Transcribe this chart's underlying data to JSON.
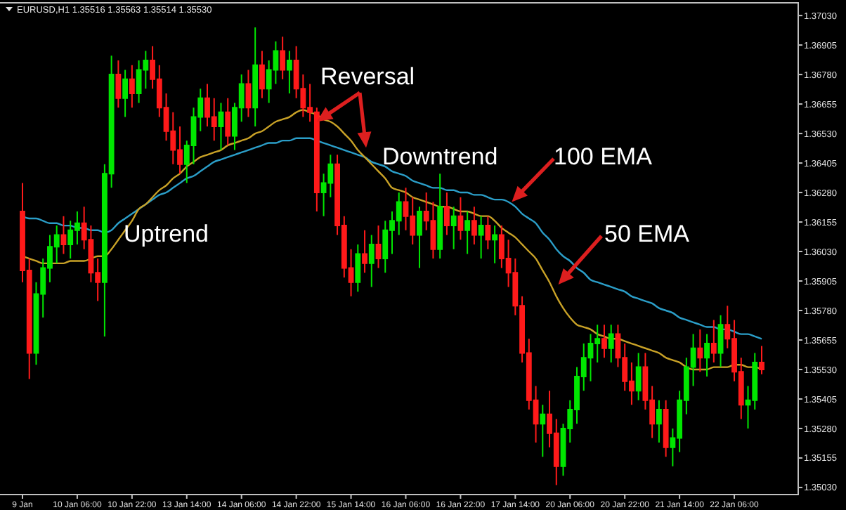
{
  "chart_data": {
    "type": "candlestick",
    "title": "EURUSD,H1 1.35516 1.35563 1.35514 1.35530",
    "categories": [
      "9 Jan",
      null,
      null,
      null,
      null,
      null,
      null,
      null,
      "10 Jan 06:00",
      null,
      null,
      null,
      null,
      null,
      null,
      null,
      "10 Jan 22:00",
      null,
      null,
      null,
      null,
      null,
      null,
      null,
      "13 Jan 14:00",
      null,
      null,
      null,
      null,
      null,
      null,
      null,
      "14 Jan 06:00",
      null,
      null,
      null,
      null,
      null,
      null,
      null,
      "14 Jan 22:00",
      null,
      null,
      null,
      null,
      null,
      null,
      null,
      "15 Jan 14:00",
      null,
      null,
      null,
      null,
      null,
      null,
      null,
      "16 Jan 06:00",
      null,
      null,
      null,
      null,
      null,
      null,
      null,
      "16 Jan 22:00",
      null,
      null,
      null,
      null,
      null,
      null,
      null,
      "17 Jan 14:00",
      null,
      null,
      null,
      null,
      null,
      null,
      null,
      "20 Jan 06:00",
      null,
      null,
      null,
      null,
      null,
      null,
      null,
      "20 Jan 22:00",
      null,
      null,
      null,
      null,
      null,
      null,
      null,
      "21 Jan 14:00",
      null,
      null,
      null,
      null,
      null,
      null,
      null,
      "22 Jan 06:00",
      null,
      null,
      null,
      null
    ],
    "ohlc": [
      [
        1.362,
        1.3632,
        1.359,
        1.3595
      ],
      [
        1.3595,
        1.36,
        1.3549,
        1.356
      ],
      [
        1.356,
        1.359,
        1.3555,
        1.3585
      ],
      [
        1.3585,
        1.36,
        1.3575,
        1.3596
      ],
      [
        1.3596,
        1.361,
        1.359,
        1.3605
      ],
      [
        1.3605,
        1.3614,
        1.3598,
        1.361
      ],
      [
        1.361,
        1.3618,
        1.3602,
        1.3606
      ],
      [
        1.3606,
        1.3616,
        1.36,
        1.3612
      ],
      [
        1.3612,
        1.362,
        1.3606,
        1.3615
      ],
      [
        1.3615,
        1.3622,
        1.3604,
        1.3608
      ],
      [
        1.3608,
        1.3614,
        1.359,
        1.3594
      ],
      [
        1.3594,
        1.36,
        1.3582,
        1.359
      ],
      [
        1.359,
        1.364,
        1.3567,
        1.3636
      ],
      [
        1.3636,
        1.3686,
        1.363,
        1.3678
      ],
      [
        1.3678,
        1.3684,
        1.3664,
        1.3668
      ],
      [
        1.3668,
        1.368,
        1.366,
        1.3676
      ],
      [
        1.3676,
        1.3682,
        1.3664,
        1.367
      ],
      [
        1.367,
        1.3684,
        1.3666,
        1.368
      ],
      [
        1.368,
        1.3688,
        1.3672,
        1.3684
      ],
      [
        1.3684,
        1.369,
        1.3672,
        1.3676
      ],
      [
        1.3676,
        1.3682,
        1.366,
        1.3664
      ],
      [
        1.3664,
        1.367,
        1.365,
        1.3654
      ],
      [
        1.3654,
        1.3662,
        1.364,
        1.3646
      ],
      [
        1.3646,
        1.3656,
        1.3636,
        1.364
      ],
      [
        1.364,
        1.365,
        1.3632,
        1.3648
      ],
      [
        1.3648,
        1.3664,
        1.364,
        1.366
      ],
      [
        1.366,
        1.3672,
        1.3654,
        1.3668
      ],
      [
        1.3668,
        1.3674,
        1.3656,
        1.366
      ],
      [
        1.366,
        1.3668,
        1.365,
        1.3656
      ],
      [
        1.3656,
        1.3666,
        1.3646,
        1.3662
      ],
      [
        1.3662,
        1.3668,
        1.3648,
        1.3652
      ],
      [
        1.3652,
        1.3666,
        1.3646,
        1.3664
      ],
      [
        1.3664,
        1.3678,
        1.3658,
        1.3674
      ],
      [
        1.3674,
        1.368,
        1.366,
        1.3664
      ],
      [
        1.3664,
        1.3698,
        1.3656,
        1.3682
      ],
      [
        1.3682,
        1.3688,
        1.3668,
        1.3672
      ],
      [
        1.3672,
        1.3684,
        1.3666,
        1.368
      ],
      [
        1.368,
        1.3692,
        1.3674,
        1.3688
      ],
      [
        1.3688,
        1.3694,
        1.3676,
        1.368
      ],
      [
        1.368,
        1.3688,
        1.367,
        1.3684
      ],
      [
        1.3684,
        1.369,
        1.3668,
        1.3672
      ],
      [
        1.3672,
        1.3678,
        1.366,
        1.3664
      ],
      [
        1.3664,
        1.3674,
        1.3658,
        1.3662
      ],
      [
        1.3662,
        1.3664,
        1.362,
        1.3628
      ],
      [
        1.3628,
        1.3636,
        1.3618,
        1.3632
      ],
      [
        1.3632,
        1.3644,
        1.3626,
        1.364
      ],
      [
        1.364,
        1.3644,
        1.361,
        1.3614
      ],
      [
        1.3614,
        1.3618,
        1.3592,
        1.3596
      ],
      [
        1.3596,
        1.3604,
        1.3584,
        1.359
      ],
      [
        1.359,
        1.3606,
        1.3586,
        1.3602
      ],
      [
        1.3602,
        1.3612,
        1.3594,
        1.3598
      ],
      [
        1.3598,
        1.361,
        1.3588,
        1.3606
      ],
      [
        1.3606,
        1.3614,
        1.3596,
        1.36
      ],
      [
        1.36,
        1.3616,
        1.3594,
        1.3612
      ],
      [
        1.3612,
        1.362,
        1.3602,
        1.3616
      ],
      [
        1.3616,
        1.3628,
        1.361,
        1.3624
      ],
      [
        1.3624,
        1.363,
        1.3612,
        1.3618
      ],
      [
        1.3618,
        1.3626,
        1.3606,
        1.361
      ],
      [
        1.361,
        1.3622,
        1.3596,
        1.362
      ],
      [
        1.362,
        1.3628,
        1.3612,
        1.3616
      ],
      [
        1.3616,
        1.3624,
        1.36,
        1.3604
      ],
      [
        1.3604,
        1.3636,
        1.36,
        1.3622
      ],
      [
        1.3622,
        1.3628,
        1.361,
        1.3614
      ],
      [
        1.3614,
        1.3622,
        1.3604,
        1.3618
      ],
      [
        1.3618,
        1.3626,
        1.3608,
        1.3612
      ],
      [
        1.3612,
        1.362,
        1.3602,
        1.3616
      ],
      [
        1.3616,
        1.3622,
        1.3606,
        1.361
      ],
      [
        1.361,
        1.3618,
        1.36,
        1.3614
      ],
      [
        1.3614,
        1.3618,
        1.3604,
        1.3608
      ],
      [
        1.3608,
        1.3614,
        1.3598,
        1.361
      ],
      [
        1.361,
        1.3614,
        1.3596,
        1.36
      ],
      [
        1.36,
        1.3608,
        1.3588,
        1.3594
      ],
      [
        1.3594,
        1.36,
        1.3576,
        1.358
      ],
      [
        1.358,
        1.3584,
        1.3556,
        1.356
      ],
      [
        1.356,
        1.3566,
        1.3536,
        1.354
      ],
      [
        1.354,
        1.3546,
        1.3522,
        1.353
      ],
      [
        1.353,
        1.3538,
        1.3516,
        1.3534
      ],
      [
        1.3534,
        1.3544,
        1.352,
        1.3526
      ],
      [
        1.3526,
        1.3532,
        1.3504,
        1.3512
      ],
      [
        1.3512,
        1.353,
        1.3508,
        1.3528
      ],
      [
        1.3528,
        1.354,
        1.3522,
        1.3536
      ],
      [
        1.3536,
        1.3554,
        1.353,
        1.355
      ],
      [
        1.355,
        1.3564,
        1.3544,
        1.3558
      ],
      [
        1.3558,
        1.3568,
        1.3548,
        1.3564
      ],
      [
        1.3564,
        1.3572,
        1.3556,
        1.3566
      ],
      [
        1.3566,
        1.3572,
        1.3558,
        1.3562
      ],
      [
        1.3562,
        1.3572,
        1.3556,
        1.3568
      ],
      [
        1.3568,
        1.3572,
        1.3554,
        1.3558
      ],
      [
        1.3558,
        1.3564,
        1.3544,
        1.3548
      ],
      [
        1.3548,
        1.3556,
        1.3538,
        1.3544
      ],
      [
        1.3544,
        1.356,
        1.354,
        1.3554
      ],
      [
        1.3554,
        1.356,
        1.3536,
        1.354
      ],
      [
        1.354,
        1.3546,
        1.3524,
        1.353
      ],
      [
        1.353,
        1.354,
        1.3522,
        1.3536
      ],
      [
        1.3536,
        1.354,
        1.3516,
        1.352
      ],
      [
        1.352,
        1.3528,
        1.3512,
        1.3524
      ],
      [
        1.3524,
        1.3544,
        1.3518,
        1.354
      ],
      [
        1.354,
        1.3558,
        1.3534,
        1.3554
      ],
      [
        1.3554,
        1.3568,
        1.3546,
        1.3562
      ],
      [
        1.3562,
        1.357,
        1.3552,
        1.3558
      ],
      [
        1.3558,
        1.3568,
        1.355,
        1.3564
      ],
      [
        1.3564,
        1.3574,
        1.3556,
        1.356
      ],
      [
        1.356,
        1.3576,
        1.3554,
        1.3572
      ],
      [
        1.3572,
        1.358,
        1.3562,
        1.3566
      ],
      [
        1.3566,
        1.3574,
        1.3548,
        1.3552
      ],
      [
        1.3552,
        1.3558,
        1.3532,
        1.3538
      ],
      [
        1.3538,
        1.3546,
        1.3528,
        1.354
      ],
      [
        1.354,
        1.356,
        1.3536,
        1.3556
      ],
      [
        1.3556,
        1.3563,
        1.3551,
        1.3553
      ]
    ],
    "series": [
      {
        "type": "line",
        "color": "#2b9ec8",
        "values": [
          1.3618,
          1.3617,
          1.3617,
          1.3616,
          1.3615,
          1.3615,
          1.3614,
          1.3614,
          1.3613,
          1.3613,
          1.3612,
          1.3612,
          1.3611,
          1.3612,
          1.3615,
          1.3617,
          1.3619,
          1.3621,
          1.3623,
          1.3625,
          1.3627,
          1.3628,
          1.363,
          1.3632,
          1.3634,
          1.3635,
          1.3637,
          1.3639,
          1.3641,
          1.3642,
          1.3643,
          1.3644,
          1.3645,
          1.3646,
          1.3647,
          1.3648,
          1.3649,
          1.3649,
          1.365,
          1.365,
          1.3651,
          1.3651,
          1.3651,
          1.365,
          1.3649,
          1.3648,
          1.3647,
          1.3646,
          1.3645,
          1.3644,
          1.3643,
          1.3641,
          1.364,
          1.3639,
          1.3637,
          1.3636,
          1.3635,
          1.3633,
          1.3632,
          1.3631,
          1.363,
          1.363,
          1.3629,
          1.3629,
          1.3628,
          1.3628,
          1.3627,
          1.3627,
          1.3626,
          1.3625,
          1.3625,
          1.3624,
          1.3622,
          1.3619,
          1.3617,
          1.3615,
          1.3611,
          1.3608,
          1.3604,
          1.3601,
          1.3599,
          1.3596,
          1.3594,
          1.3591,
          1.359,
          1.3589,
          1.3588,
          1.3587,
          1.3586,
          1.3584,
          1.3583,
          1.3582,
          1.3581,
          1.3579,
          1.3578,
          1.3577,
          1.3575,
          1.3574,
          1.3573,
          1.3572,
          1.3571,
          1.3571,
          1.357,
          1.357,
          1.3569,
          1.3568,
          1.3568,
          1.3567,
          1.3566
        ]
      },
      {
        "type": "line",
        "color": "#c9a227",
        "values": [
          1.3601,
          1.36,
          1.3599,
          1.3598,
          1.3598,
          1.3598,
          1.3598,
          1.3599,
          1.3599,
          1.3599,
          1.36,
          1.3601,
          1.3601,
          1.3604,
          1.3608,
          1.3612,
          1.3616,
          1.3621,
          1.3623,
          1.3626,
          1.3629,
          1.3631,
          1.3634,
          1.3636,
          1.3639,
          1.3641,
          1.3643,
          1.3644,
          1.3645,
          1.3646,
          1.3648,
          1.3649,
          1.365,
          1.3651,
          1.3653,
          1.3654,
          1.3656,
          1.3658,
          1.3659,
          1.366,
          1.3662,
          1.3663,
          1.3662,
          1.3661,
          1.3659,
          1.3658,
          1.3656,
          1.3653,
          1.365,
          1.3646,
          1.3643,
          1.364,
          1.3637,
          1.3634,
          1.363,
          1.3629,
          1.3628,
          1.3626,
          1.3625,
          1.3624,
          1.3623,
          1.3622,
          1.3622,
          1.3621,
          1.362,
          1.362,
          1.3619,
          1.3618,
          1.3618,
          1.3616,
          1.3613,
          1.3611,
          1.3609,
          1.3606,
          1.3603,
          1.36,
          1.3595,
          1.359,
          1.3584,
          1.3579,
          1.3575,
          1.3572,
          1.3571,
          1.357,
          1.3568,
          1.3567,
          1.3566,
          1.3566,
          1.3565,
          1.3564,
          1.3563,
          1.3562,
          1.3561,
          1.356,
          1.3558,
          1.3557,
          1.3556,
          1.3554,
          1.3553,
          1.3553,
          1.3553,
          1.3554,
          1.3554,
          1.3554,
          1.3555,
          1.3555,
          1.3554,
          1.3554,
          1.3553
        ]
      }
    ],
    "ylim": [
      1.35,
      1.37084
    ],
    "yticks": [
      {
        "value": 1.3503,
        "label": "1.35030"
      },
      {
        "value": 1.35155,
        "label": "1.35155"
      },
      {
        "value": 1.3528,
        "label": "1.35280"
      },
      {
        "value": 1.35405,
        "label": "1.35405"
      },
      {
        "value": 1.3553,
        "label": "1.35530"
      },
      {
        "value": 1.35655,
        "label": "1.35655"
      },
      {
        "value": 1.3578,
        "label": "1.35780"
      },
      {
        "value": 1.35905,
        "label": "1.35905"
      },
      {
        "value": 1.3603,
        "label": "1.36030"
      },
      {
        "value": 1.36155,
        "label": "1.36155"
      },
      {
        "value": 1.3628,
        "label": "1.36280"
      },
      {
        "value": 1.36405,
        "label": "1.36405"
      },
      {
        "value": 1.3653,
        "label": "1.36530"
      },
      {
        "value": 1.36655,
        "label": "1.36655"
      },
      {
        "value": 1.3678,
        "label": "1.36780"
      },
      {
        "value": 1.36905,
        "label": "1.36905"
      },
      {
        "value": 1.3703,
        "label": "1.37030"
      }
    ],
    "annotations": [
      "Reversal",
      "Downtrend",
      "100 EMA",
      "50 EMA",
      "Uptrend"
    ]
  }
}
